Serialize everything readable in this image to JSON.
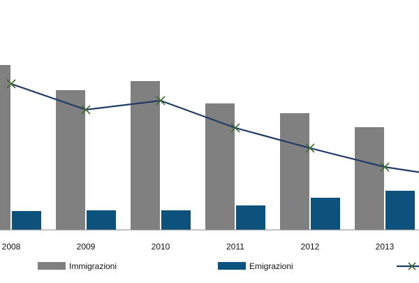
{
  "chart_data": {
    "type": "bar",
    "categories": [
      "2008",
      "2009",
      "2010",
      "2011",
      "2012",
      "2013"
    ],
    "series": [
      {
        "name": "Immigrazioni",
        "kind": "bar",
        "color": "#808080",
        "values": [
          236,
          200,
          213,
          181,
          167,
          147
        ]
      },
      {
        "name": "Emigrazioni",
        "kind": "bar",
        "color": "#0c527c",
        "values": [
          27,
          28,
          28,
          35,
          46,
          56
        ]
      },
      {
        "name": "",
        "kind": "line",
        "color": "#1f3b66",
        "marker": "x",
        "marker_color": "#3c6b2e",
        "values": [
          209,
          172,
          185,
          146,
          117,
          90
        ]
      }
    ],
    "ylim": [
      0,
      260
    ],
    "grid": false,
    "legend": "bottom",
    "title": "",
    "xlabel": "",
    "ylabel": ""
  }
}
